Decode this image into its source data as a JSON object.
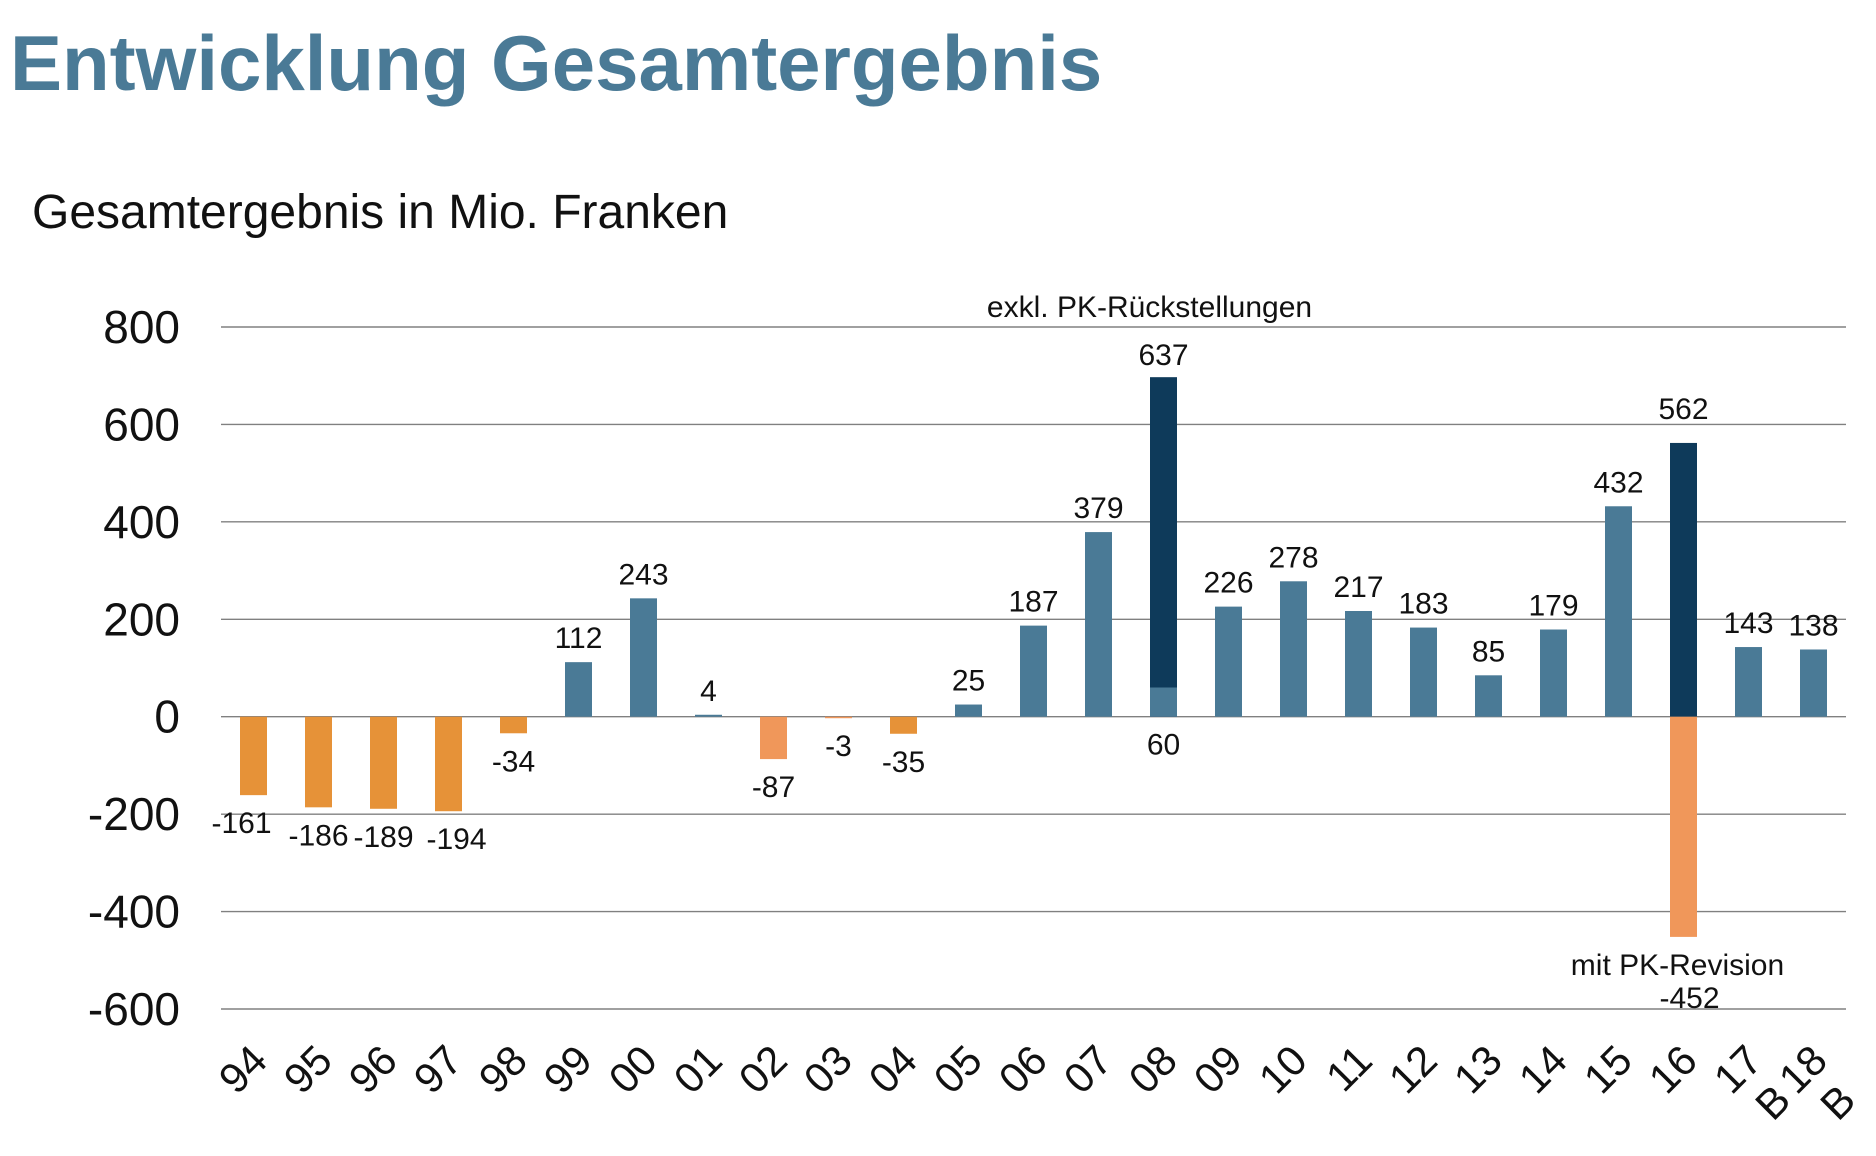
{
  "title": "Entwicklung Gesamtergebnis",
  "chart_data": {
    "type": "bar",
    "title": "Gesamtergebnis in Mio. Franken",
    "xlabel": "",
    "ylabel": "",
    "ylim": [
      -600,
      800
    ],
    "yticks": [
      800,
      600,
      400,
      200,
      0,
      -200,
      -400,
      -600
    ],
    "ytick_labels": [
      "800",
      "600",
      "400",
      "200",
      "0",
      "-200",
      "-400",
      "-600"
    ],
    "grid": true,
    "categories": [
      "94",
      "95",
      "96",
      "97",
      "98",
      "99",
      "00",
      "01",
      "02",
      "03",
      "04",
      "05",
      "06",
      "07",
      "08",
      "09",
      "10",
      "11",
      "12",
      "13",
      "14",
      "15",
      "16",
      "B 17",
      "B 18"
    ],
    "values": [
      -161,
      -186,
      -189,
      -194,
      -34,
      112,
      243,
      4,
      -87,
      -3,
      -35,
      25,
      187,
      379,
      60,
      226,
      278,
      217,
      183,
      85,
      179,
      432,
      562,
      143,
      138
    ],
    "value_labels": [
      "-161",
      "-186",
      "-189",
      "-194",
      "-34",
      "112",
      "243",
      "4",
      "-87",
      "-3",
      "-35",
      "25",
      "187",
      "379",
      "60",
      "226",
      "278",
      "217",
      "183",
      "85",
      "179",
      "432",
      "562",
      "143",
      "138"
    ],
    "overlays": [
      {
        "category": "08",
        "value": 697,
        "label": "637",
        "annotation": "exkl. PK-Rückstellungen"
      },
      {
        "category": "16",
        "value": -452,
        "label": "-452",
        "annotation": "mit PK-Revision"
      }
    ],
    "colors": {
      "positive": "#4a7a96",
      "negative": "#e69238",
      "negative_light": "#f0975a",
      "highlight": "#0e3a5a",
      "grid": "#808080"
    }
  }
}
